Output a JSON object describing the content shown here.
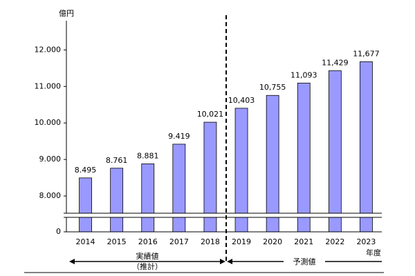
{
  "chart_data": {
    "type": "bar",
    "unit_label": "億円",
    "x_axis_label": "年度",
    "categories": [
      "2014",
      "2015",
      "2016",
      "2017",
      "2018",
      "2019",
      "2020",
      "2021",
      "2022",
      "2023"
    ],
    "values": [
      8495,
      8761,
      8881,
      9419,
      10021,
      10403,
      10755,
      11093,
      11429,
      11677
    ],
    "value_labels": [
      "8.495",
      "8.761",
      "8.881",
      "9.419",
      "10,021",
      "10,403",
      "10,755",
      "11,093",
      "11,429",
      "11,677"
    ],
    "color": "#9999ff",
    "ylim": [
      0,
      12800
    ],
    "ybreak": 7500,
    "yticks": [
      0,
      {
        "value": 8000,
        "label": "8.000"
      },
      {
        "value": 9000,
        "label": "9.000"
      },
      {
        "value": 10000,
        "label": "10.000"
      },
      {
        "value": 11000,
        "label": "11.000"
      },
      {
        "value": 12000,
        "label": "12.000"
      }
    ],
    "periods": [
      {
        "label": "実績値",
        "sublabel": "（推計）"
      },
      {
        "label": "予測値"
      }
    ]
  }
}
